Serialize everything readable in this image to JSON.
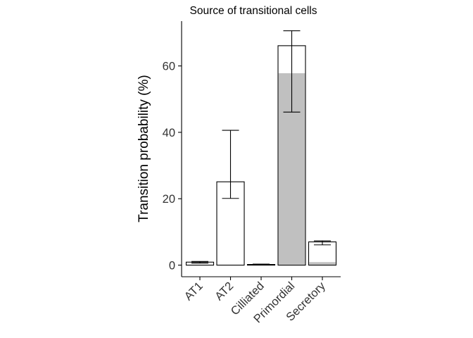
{
  "chart_data": {
    "type": "bar",
    "title": "Source of transitional cells",
    "xlabel": "",
    "ylabel": "Transition probability (%)",
    "categories": [
      "AT1",
      "AT2",
      "Cilliated",
      "Primordial",
      "Secretory"
    ],
    "values": [
      0.9,
      25.1,
      0.2,
      66.1,
      7.0
    ],
    "shaded_values": [
      0.0,
      0.0,
      0.0,
      57.8,
      0.9
    ],
    "error_bars": [
      {
        "low": 0.6,
        "high": 1.1
      },
      {
        "low": 20.1,
        "high": 40.6
      },
      {
        "low": 0.1,
        "high": 0.3
      },
      {
        "low": 46.1,
        "high": 70.6
      },
      {
        "low": 6.1,
        "high": 7.3
      }
    ],
    "ylim": [
      -3.5,
      73.5
    ],
    "yticks": [
      0,
      20,
      40,
      60
    ],
    "grid": false,
    "colors": {
      "bar_fill": "#ffffff",
      "bar_stroke": "#000000",
      "shaded_fill": "#c0c0c0"
    }
  }
}
